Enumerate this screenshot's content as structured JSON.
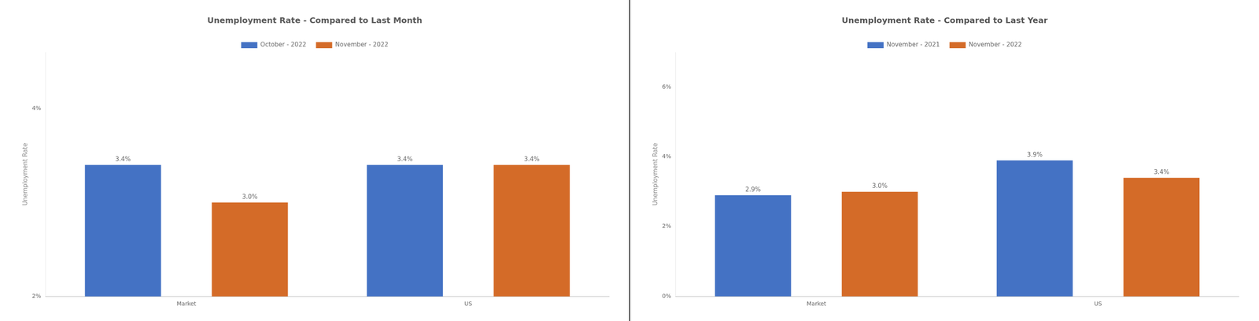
{
  "chart_data": [
    {
      "type": "bar",
      "title": "Unemployment Rate - Compared to Last Month",
      "categories": [
        "Market",
        "US"
      ],
      "series": [
        {
          "name": "October - 2022",
          "color": "#4472C4",
          "values": [
            3.4,
            3.4
          ],
          "value_labels": [
            "3.4%",
            "3.4%"
          ]
        },
        {
          "name": "November - 2022",
          "color": "#D46B28",
          "values": [
            3.0,
            3.4
          ],
          "value_labels": [
            "3.0%",
            "3.4%"
          ]
        }
      ],
      "ylim": [
        2.0,
        4.6
      ],
      "yticks": [
        {
          "value": 2.0,
          "label": "2%"
        },
        {
          "value": 4.0,
          "label": "4%"
        }
      ],
      "ylabel": "Unemployment Rate",
      "grid": false,
      "legend": "top",
      "data_labels": true
    },
    {
      "type": "bar",
      "title": "Unemployment Rate - Compared to Last Year",
      "categories": [
        "Market",
        "US"
      ],
      "series": [
        {
          "name": "November - 2021",
          "color": "#4472C4",
          "values": [
            2.9,
            3.9
          ],
          "value_labels": [
            "2.9%",
            "3.9%"
          ]
        },
        {
          "name": "November - 2022",
          "color": "#D46B28",
          "values": [
            3.0,
            3.4
          ],
          "value_labels": [
            "3.0%",
            "3.4%"
          ]
        }
      ],
      "ylim": [
        0.0,
        7.0
      ],
      "yticks": [
        {
          "value": 0.0,
          "label": "0%"
        },
        {
          "value": 2.0,
          "label": "2%"
        },
        {
          "value": 4.0,
          "label": "4%"
        },
        {
          "value": 6.0,
          "label": "6%"
        }
      ],
      "ylabel": "Unemployment Rate",
      "grid": false,
      "legend": "top",
      "data_labels": true
    }
  ]
}
